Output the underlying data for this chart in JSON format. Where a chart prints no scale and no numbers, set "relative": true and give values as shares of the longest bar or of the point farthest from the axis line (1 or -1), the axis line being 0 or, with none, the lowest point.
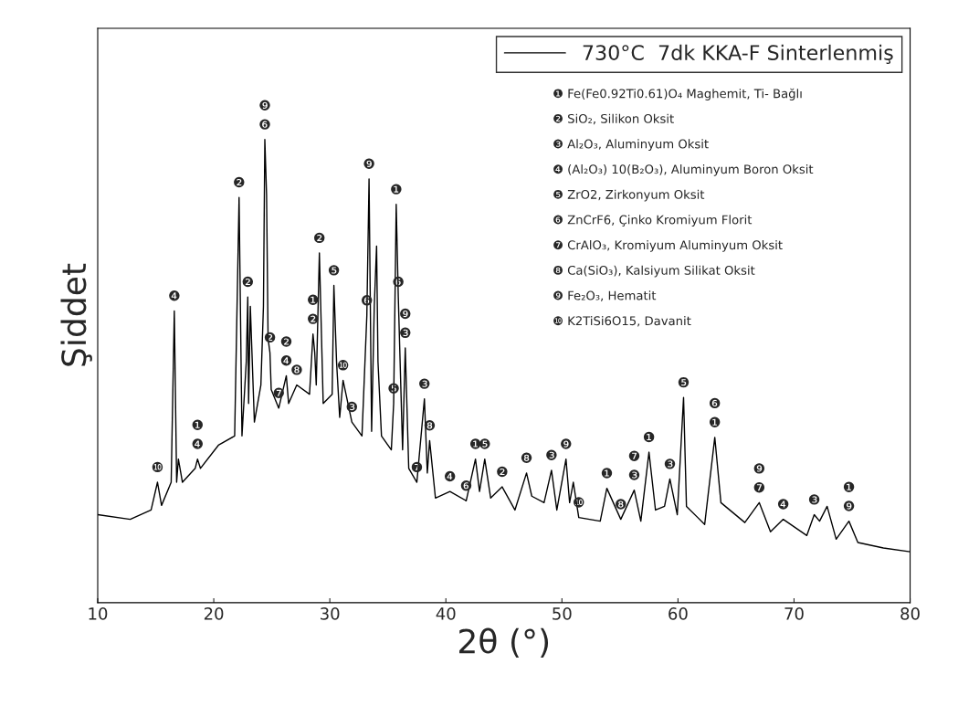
{
  "chart_data": {
    "type": "line",
    "relative": true,
    "xlabel": "2θ (°)",
    "ylabel": "Şiddet",
    "xlim": [
      10,
      80
    ],
    "xticks": [
      10,
      20,
      30,
      40,
      50,
      60,
      70,
      80
    ],
    "tick_labels": "x",
    "legend": "top right",
    "grid": false,
    "series": [
      {
        "name": "730°C  7dk KKA-F Sinterlenmiş",
        "color": "#000000",
        "x": [
          10.0,
          12.8,
          14.6,
          15.15,
          15.5,
          16.33,
          16.6,
          16.8,
          16.95,
          17.3,
          18.4,
          18.6,
          18.85,
          20.4,
          21.8,
          22.18,
          22.43,
          22.8,
          22.93,
          23.0,
          23.15,
          23.5,
          24.06,
          24.28,
          24.4,
          24.55,
          24.68,
          24.84,
          24.95,
          25.6,
          26.25,
          26.45,
          27.15,
          28.25,
          28.55,
          28.7,
          28.83,
          29.1,
          29.43,
          30.2,
          30.35,
          30.58,
          30.85,
          31.14,
          31.9,
          32.77,
          33.19,
          33.38,
          33.6,
          33.83,
          34.03,
          34.15,
          34.45,
          35.3,
          35.5,
          35.72,
          35.9,
          36.27,
          36.5,
          36.8,
          37.5,
          38.15,
          38.4,
          38.6,
          39.1,
          40.35,
          41.75,
          42.55,
          42.9,
          43.35,
          43.86,
          44.85,
          45.95,
          46.95,
          47.4,
          48.46,
          49.1,
          49.56,
          50.35,
          50.66,
          50.98,
          51.45,
          53.3,
          53.87,
          55.07,
          56.23,
          56.8,
          57.5,
          58.06,
          58.84,
          59.3,
          59.94,
          60.48,
          60.73,
          62.3,
          63.17,
          63.7,
          65.76,
          67.0,
          67.97,
          69.07,
          71.1,
          71.74,
          72.2,
          72.85,
          73.63,
          74.73,
          75.5,
          77.7,
          80.0
        ],
        "values": [
          0.19,
          0.18,
          0.2,
          0.26,
          0.21,
          0.26,
          0.63,
          0.26,
          0.31,
          0.26,
          0.29,
          0.31,
          0.29,
          0.34,
          0.36,
          0.875,
          0.36,
          0.52,
          0.66,
          0.43,
          0.64,
          0.39,
          0.47,
          0.64,
          1.0,
          0.88,
          0.57,
          0.54,
          0.46,
          0.42,
          0.49,
          0.43,
          0.47,
          0.45,
          0.58,
          0.54,
          0.47,
          0.755,
          0.43,
          0.45,
          0.685,
          0.52,
          0.4,
          0.48,
          0.39,
          0.36,
          0.62,
          0.915,
          0.37,
          0.64,
          0.77,
          0.52,
          0.36,
          0.33,
          0.43,
          0.86,
          0.66,
          0.33,
          0.55,
          0.29,
          0.26,
          0.44,
          0.28,
          0.35,
          0.226,
          0.24,
          0.22,
          0.31,
          0.24,
          0.31,
          0.226,
          0.25,
          0.2,
          0.28,
          0.23,
          0.216,
          0.286,
          0.2,
          0.31,
          0.216,
          0.26,
          0.184,
          0.176,
          0.247,
          0.18,
          0.243,
          0.176,
          0.325,
          0.2,
          0.208,
          0.267,
          0.19,
          0.443,
          0.208,
          0.169,
          0.357,
          0.216,
          0.173,
          0.216,
          0.153,
          0.18,
          0.145,
          0.19,
          0.176,
          0.208,
          0.137,
          0.176,
          0.13,
          0.118,
          0.11
        ]
      }
    ],
    "annotations": [
      "❶ Fe(Fe0.92Ti0.61)O₄ Maghemit, Ti- Bağlı",
      "❷ SiO₂, Silikon Oksit",
      "❸ Al₂O₃, Aluminyum Oksit",
      "❹ (Al₂O₃) 10(B₂O₃), Aluminyum Boron Oksit",
      "❺ ZrO2, Zirkonyum Oksit",
      "❻ ZnCrF6, Çinko Kromiyum Florit",
      "❼ CrAlO₃, Kromiyum Aluminyum Oksit",
      "❽ Ca(SiO₃), Kalsiyum Silikat Oksit",
      "❾ Fe₂O₃, Hematit",
      "❿ K2TiSi6O15, Davanit",
      {
        "text": "❿",
        "x": 15.15,
        "y": 0.26
      },
      {
        "text": "❹",
        "x": 16.6,
        "y": 0.63
      },
      {
        "text": "❹",
        "x": 18.6,
        "y": 0.31
      },
      {
        "text": "❶",
        "x": 18.6,
        "y": 0.31
      },
      {
        "text": "❷",
        "x": 22.18,
        "y": 0.875
      },
      {
        "text": "❷",
        "x": 22.93,
        "y": 0.66
      },
      {
        "text": "❻",
        "x": 24.4,
        "y": 1.0
      },
      {
        "text": "❾",
        "x": 24.4,
        "y": 1.0
      },
      {
        "text": "❷",
        "x": 24.84,
        "y": 0.54
      },
      {
        "text": "❹",
        "x": 26.25,
        "y": 0.49
      },
      {
        "text": "❷",
        "x": 26.25,
        "y": 0.49
      },
      {
        "text": "❼",
        "x": 25.6,
        "y": 0.42
      },
      {
        "text": "❽",
        "x": 27.15,
        "y": 0.47
      },
      {
        "text": "❷",
        "x": 28.55,
        "y": 0.58
      },
      {
        "text": "❶",
        "x": 28.55,
        "y": 0.58
      },
      {
        "text": "❷",
        "x": 29.1,
        "y": 0.755
      },
      {
        "text": "❺",
        "x": 30.35,
        "y": 0.685
      },
      {
        "text": "❿",
        "x": 31.14,
        "y": 0.48
      },
      {
        "text": "❸",
        "x": 31.9,
        "y": 0.39
      },
      {
        "text": "❻",
        "x": 33.19,
        "y": 0.62
      },
      {
        "text": "❾",
        "x": 33.38,
        "y": 0.915
      },
      {
        "text": "❸",
        "x": 36.5,
        "y": 0.55
      },
      {
        "text": "❾",
        "x": 36.5,
        "y": 0.55
      },
      {
        "text": "❻",
        "x": 35.9,
        "y": 0.66
      },
      {
        "text": "❶",
        "x": 35.72,
        "y": 0.86
      },
      {
        "text": "❺",
        "x": 35.5,
        "y": 0.43
      },
      {
        "text": "❼",
        "x": 37.5,
        "y": 0.26
      },
      {
        "text": "❸",
        "x": 38.15,
        "y": 0.44
      },
      {
        "text": "❽",
        "x": 38.6,
        "y": 0.35
      },
      {
        "text": "❹",
        "x": 40.35,
        "y": 0.24
      },
      {
        "text": "❻",
        "x": 41.75,
        "y": 0.22
      },
      {
        "text": "❶",
        "x": 42.55,
        "y": 0.31
      },
      {
        "text": "❺",
        "x": 43.35,
        "y": 0.31
      },
      {
        "text": "❷",
        "x": 44.85,
        "y": 0.25
      },
      {
        "text": "❽",
        "x": 46.95,
        "y": 0.28
      },
      {
        "text": "❸",
        "x": 49.1,
        "y": 0.286
      },
      {
        "text": "❾",
        "x": 50.35,
        "y": 0.31
      },
      {
        "text": "❿",
        "x": 51.45,
        "y": 0.184
      },
      {
        "text": "❶",
        "x": 53.87,
        "y": 0.247
      },
      {
        "text": "❸",
        "x": 56.23,
        "y": 0.243
      },
      {
        "text": "❼",
        "x": 56.23,
        "y": 0.243
      },
      {
        "text": "❽",
        "x": 55.07,
        "y": 0.18
      },
      {
        "text": "❶",
        "x": 57.5,
        "y": 0.325
      },
      {
        "text": "❸",
        "x": 59.3,
        "y": 0.267
      },
      {
        "text": "❺",
        "x": 60.48,
        "y": 0.443
      },
      {
        "text": "❶",
        "x": 63.17,
        "y": 0.357
      },
      {
        "text": "❻",
        "x": 63.17,
        "y": 0.357
      },
      {
        "text": "❼",
        "x": 67.0,
        "y": 0.216
      },
      {
        "text": "❾",
        "x": 67.0,
        "y": 0.216
      },
      {
        "text": "❹",
        "x": 69.07,
        "y": 0.18
      },
      {
        "text": "❸",
        "x": 71.74,
        "y": 0.19
      },
      {
        "text": "❾",
        "x": 74.73,
        "y": 0.176
      },
      {
        "text": "❶",
        "x": 74.73,
        "y": 0.176
      }
    ]
  }
}
